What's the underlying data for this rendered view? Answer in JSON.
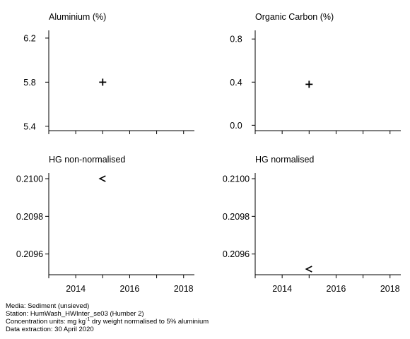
{
  "chart_data": [
    {
      "type": "scatter",
      "title": "Aluminium (%)",
      "xlim": [
        2013,
        2018.4
      ],
      "x_ticks": [
        2014,
        2016,
        2018
      ],
      "show_x_tick_labels": false,
      "ylim": [
        5.36,
        6.27
      ],
      "y_ticks": [
        5.4,
        5.8,
        6.2
      ],
      "y_tick_labels": [
        "5.4",
        "5.8",
        "6.2"
      ],
      "points": [
        {
          "x": 2015,
          "y": 5.8,
          "marker": "+"
        }
      ]
    },
    {
      "type": "scatter",
      "title": "Organic Carbon (%)",
      "xlim": [
        2013,
        2018.4
      ],
      "x_ticks": [
        2014,
        2016,
        2018
      ],
      "show_x_tick_labels": false,
      "ylim": [
        -0.05,
        0.88
      ],
      "y_ticks": [
        0.0,
        0.4,
        0.8
      ],
      "y_tick_labels": [
        "0.0",
        "0.4",
        "0.8"
      ],
      "points": [
        {
          "x": 2015,
          "y": 0.38,
          "marker": "+"
        }
      ]
    },
    {
      "type": "scatter",
      "title": "HG non-normalised",
      "xlim": [
        2013,
        2018.4
      ],
      "x_ticks": [
        2014,
        2016,
        2018
      ],
      "x_tick_labels": [
        "2014",
        "2016",
        "2018"
      ],
      "show_x_tick_labels": true,
      "ylim": [
        0.20949,
        0.21003
      ],
      "y_ticks": [
        0.2096,
        0.2098,
        0.21
      ],
      "y_tick_labels": [
        "0.2096",
        "0.2098",
        "0.2100"
      ],
      "points": [
        {
          "x": 2015,
          "y": 0.21,
          "marker": "<"
        }
      ]
    },
    {
      "type": "scatter",
      "title": "HG normalised",
      "xlim": [
        2013,
        2018.4
      ],
      "x_ticks": [
        2014,
        2016,
        2018
      ],
      "x_tick_labels": [
        "2014",
        "2016",
        "2018"
      ],
      "show_x_tick_labels": true,
      "ylim": [
        0.20949,
        0.21003
      ],
      "y_ticks": [
        0.2096,
        0.2098,
        0.21
      ],
      "y_tick_labels": [
        "0.2096",
        "0.2098",
        "0.2100"
      ],
      "points": [
        {
          "x": 2015,
          "y": 0.20952,
          "marker": "<"
        }
      ]
    }
  ],
  "footer": {
    "media": "Media: Sediment (unsieved)",
    "station": "Station: HumWash_HWInter_se03 (Humber 2)",
    "units_prefix": "Concentration units:  mg kg",
    "units_sup": "-1",
    "units_suffix": " dry weight normalised to 5% aluminium",
    "extraction": "Data extraction: 30 April 2020"
  }
}
